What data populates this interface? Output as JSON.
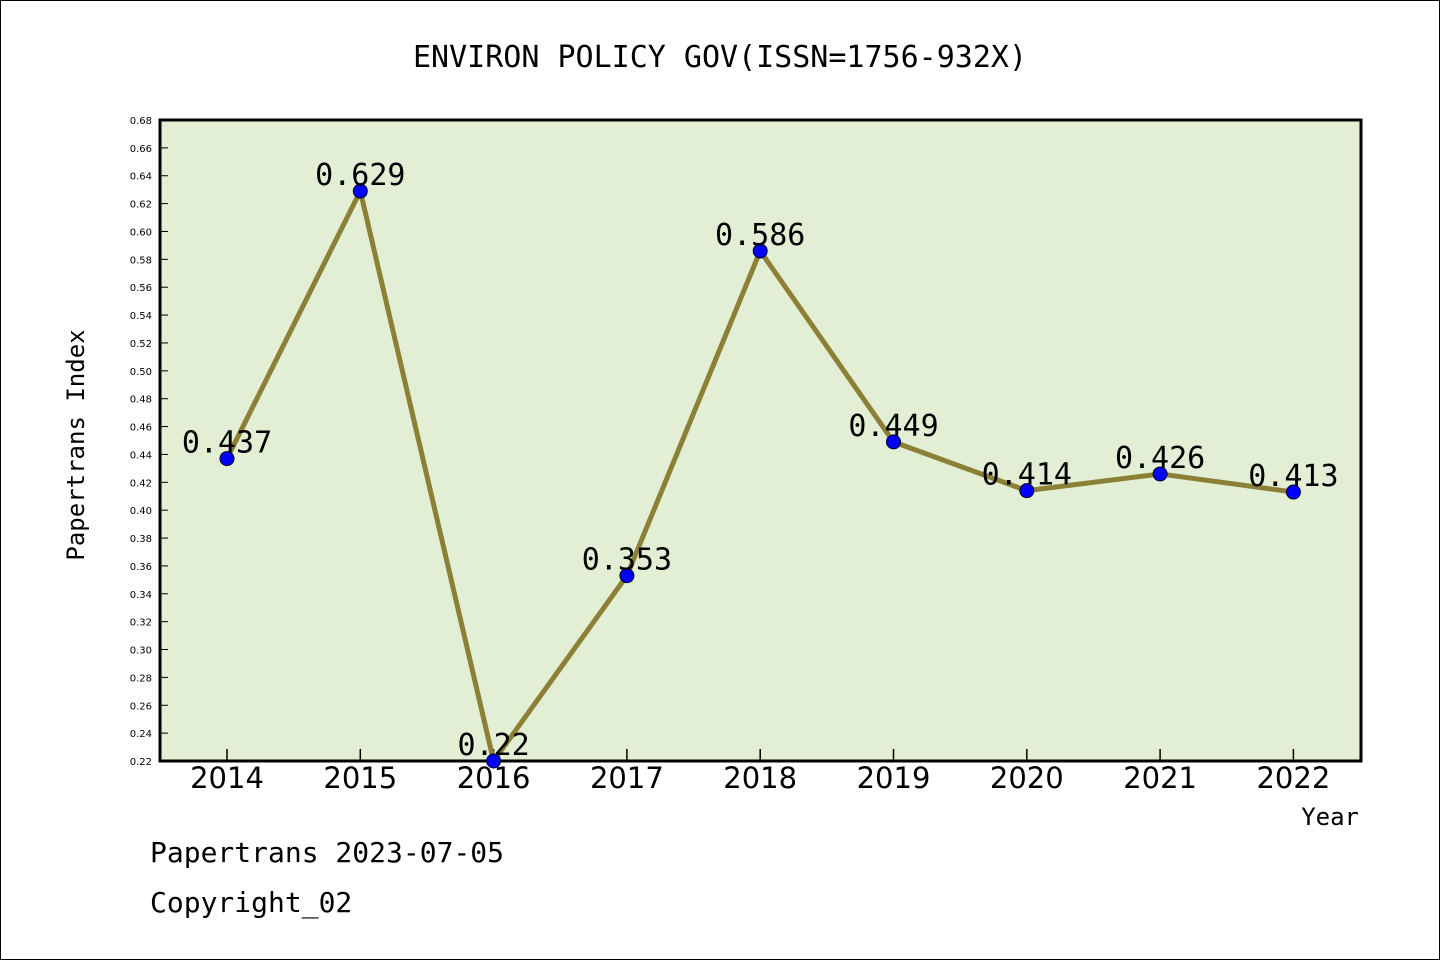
{
  "chart_data": {
    "type": "line",
    "title": "ENVIRON POLICY GOV(ISSN=1756-932X)",
    "xlabel": "Year",
    "ylabel": "Papertrans Index",
    "categories": [
      "2014",
      "2015",
      "2016",
      "2017",
      "2018",
      "2019",
      "2020",
      "2021",
      "2022"
    ],
    "values": [
      0.437,
      0.629,
      0.22,
      0.353,
      0.586,
      0.449,
      0.414,
      0.426,
      0.413
    ],
    "data_labels": [
      "0.437",
      "0.629",
      "0.22",
      "0.353",
      "0.586",
      "0.449",
      "0.414",
      "0.426",
      "0.413"
    ],
    "ylim": [
      0.22,
      0.68
    ],
    "yticks": [
      "0.22",
      "0.24",
      "0.26",
      "0.28",
      "0.30",
      "0.32",
      "0.34",
      "0.36",
      "0.38",
      "0.40",
      "0.42",
      "0.44",
      "0.46",
      "0.48",
      "0.50",
      "0.52",
      "0.54",
      "0.56",
      "0.58",
      "0.60",
      "0.62",
      "0.64",
      "0.66",
      "0.68"
    ],
    "grid": false,
    "colors": {
      "plot_background": "#e2efd4",
      "line": "#8b8036",
      "marker": "#0000ff"
    }
  },
  "footer": {
    "line1": "Papertrans 2023-07-05",
    "line2": "Copyright_02"
  }
}
